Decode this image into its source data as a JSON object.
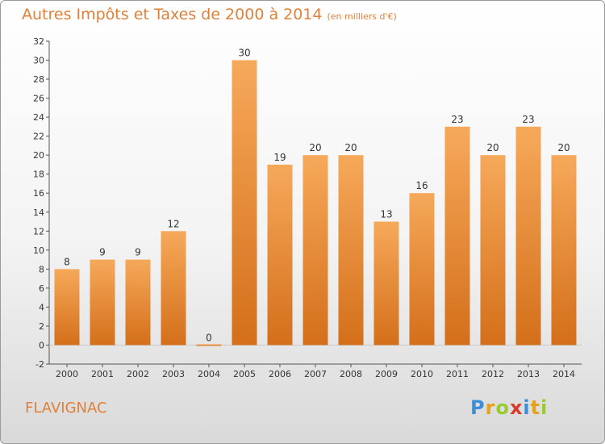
{
  "title": "Autres Impôts et Taxes de 2000 à 2014",
  "subtitle": "(en milliers d'€)",
  "commune": "FLAVIGNAC",
  "logo": {
    "letters": [
      "P",
      "r",
      "o",
      "x",
      "i",
      "t",
      "i"
    ],
    "colors": [
      "#3a8fd8",
      "#e8a11a",
      "#9acb2c",
      "#d93b2b",
      "#3a8fd8",
      "#e8a11a",
      "#9acb2c"
    ]
  },
  "colors": {
    "bar_top": "#f6a95a",
    "bar_bottom": "#d46f1a",
    "title": "#e0813a"
  },
  "chart_data": {
    "type": "bar",
    "categories": [
      "2000",
      "2001",
      "2002",
      "2003",
      "2004",
      "2005",
      "2006",
      "2007",
      "2008",
      "2009",
      "2010",
      "2011",
      "2012",
      "2013",
      "2014"
    ],
    "values": [
      8,
      9,
      9,
      12,
      0,
      30,
      19,
      20,
      20,
      13,
      16,
      23,
      20,
      23,
      20
    ],
    "value_labels": [
      "8",
      "9",
      "9",
      "12",
      "0",
      "30",
      "19",
      "20",
      "20",
      "13",
      "16",
      "23",
      "20",
      "23",
      "20"
    ],
    "title": "Autres Impôts et Taxes de 2000 à 2014",
    "ylim": [
      -2,
      32
    ],
    "yticks": [
      -2,
      0,
      2,
      4,
      6,
      8,
      10,
      12,
      14,
      16,
      18,
      20,
      22,
      24,
      26,
      28,
      30,
      32
    ],
    "grid": false
  }
}
